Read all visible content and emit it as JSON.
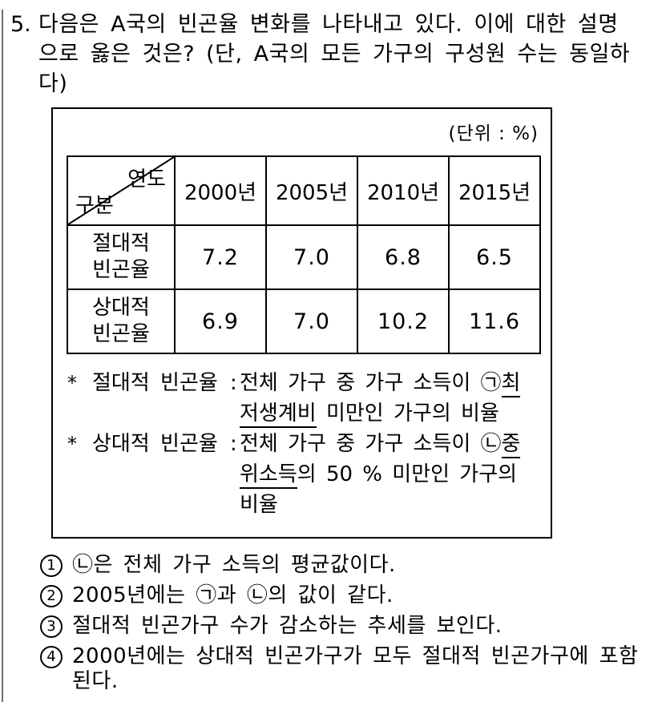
{
  "question": {
    "number": "5.",
    "text": "다음은 A국의 빈곤율 변화를 나타내고 있다. 이에 대한 설명으로 옳은 것은? (단, A국의 모든 가구의 구성원 수는 동일하다)"
  },
  "box": {
    "unit_label": "(단위 : %)",
    "table": {
      "corner": {
        "top_right": "연도",
        "bottom_left": "구분"
      },
      "columns": [
        "2000년",
        "2005년",
        "2010년",
        "2015년"
      ],
      "rows": [
        {
          "label": "절대적 빈곤율",
          "values": [
            "7.2",
            "7.0",
            "6.8",
            "6.5"
          ]
        },
        {
          "label": "상대적 빈곤율",
          "values": [
            "6.9",
            "7.0",
            "10.2",
            "11.6"
          ]
        }
      ]
    },
    "footnotes": [
      {
        "marker": "*",
        "term": "절대적 빈곤율",
        "colon": ":",
        "def_pre": "전체 가구 중 가구 소득이 ㉠",
        "def_underlined": "최저생계비",
        "def_post": " 미만인 가구의 비율"
      },
      {
        "marker": "*",
        "term": "상대적 빈곤율",
        "colon": ":",
        "def_pre": "전체 가구 중 가구 소득이 ㉡",
        "def_underlined": "중위소득",
        "def_post": "의 50 % 미만인 가구의 비율"
      }
    ]
  },
  "choices": [
    {
      "num": "1",
      "text": "㉡은 전체 가구 소득의 평균값이다."
    },
    {
      "num": "2",
      "text": "2005년에는 ㉠과 ㉡의 값이 같다."
    },
    {
      "num": "3",
      "text": "절대적 빈곤가구 수가 감소하는 추세를 보인다."
    },
    {
      "num": "4",
      "text": "2000년에는 상대적 빈곤가구가 모두 절대적 빈곤가구에 포함된다."
    }
  ]
}
